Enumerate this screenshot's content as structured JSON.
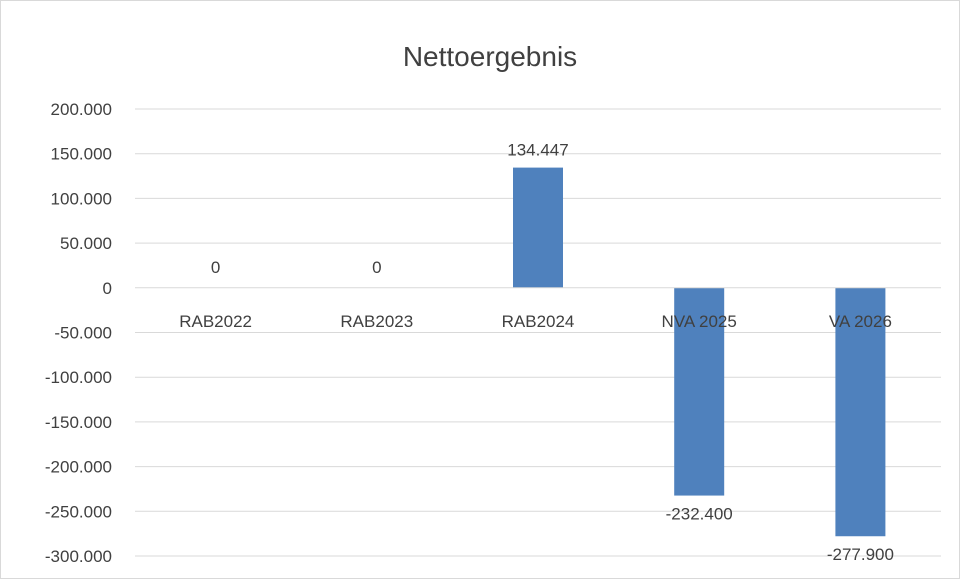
{
  "chart_data": {
    "type": "bar",
    "title": "Nettoergebnis",
    "xlabel": "",
    "ylabel": "",
    "categories": [
      "RAB2022",
      "RAB2023",
      "RAB2024",
      "NVA 2025",
      "VA 2026"
    ],
    "values": [
      0,
      0,
      134447,
      -232400,
      -277900
    ],
    "data_labels": [
      "0",
      "0",
      "134.447",
      "-232.400",
      "-277.900"
    ],
    "ylim": [
      -300000,
      200000
    ],
    "yticks": [
      200000,
      150000,
      100000,
      50000,
      0,
      -50000,
      -100000,
      -150000,
      -200000,
      -250000,
      -300000
    ],
    "ytick_labels": [
      "200.000",
      "150.000",
      "100.000",
      "50.000",
      "0",
      "-50.000",
      "-100.000",
      "-150.000",
      "-200.000",
      "-250.000",
      "-300.000"
    ],
    "grid": true,
    "legend": "none",
    "bar_color": "#4f81bd",
    "grid_color": "#d9d9d9",
    "text_color": "#404040"
  }
}
